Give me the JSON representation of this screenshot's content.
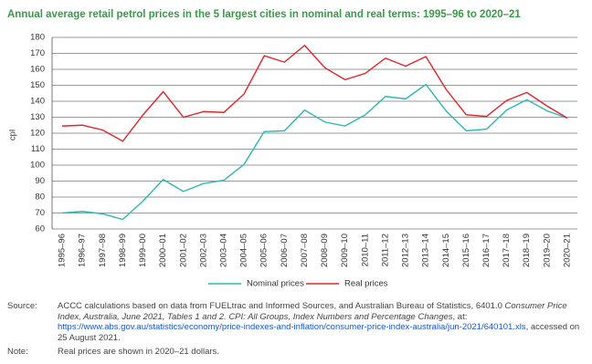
{
  "chart_data": {
    "type": "line",
    "title": "Annual average retail petrol prices in the 5 largest cities in nominal and real terms: 1995–96 to 2020–21",
    "y_label": "cpl",
    "categories": [
      "1995–96",
      "1996–97",
      "1997–98",
      "1998–99",
      "1999–00",
      "2000–01",
      "2001–02",
      "2002–03",
      "2003–04",
      "2004–05",
      "2005–06",
      "2006–07",
      "2007–08",
      "2008–09",
      "2009–10",
      "2010–11",
      "2011–12",
      "2012–13",
      "2013–14",
      "2014–15",
      "2015–16",
      "2016–17",
      "2017–18",
      "2018–19",
      "2019–20",
      "2020–21"
    ],
    "series": [
      {
        "name": "Nominal prices",
        "color": "#2bb8b2",
        "values": [
          70,
          71,
          69.5,
          66,
          77.5,
          91,
          83.5,
          88.5,
          90.5,
          100.5,
          121,
          121.5,
          134.5,
          127,
          124.5,
          131.5,
          143,
          141.5,
          150.5,
          134,
          121.5,
          122.5,
          134.5,
          141,
          134,
          129.5
        ]
      },
      {
        "name": "Real prices",
        "color": "#e2232a",
        "values": [
          124.5,
          125,
          122,
          115,
          131.5,
          146,
          130,
          133.5,
          133,
          144.5,
          168.5,
          164.5,
          175,
          161,
          153.5,
          157.5,
          167,
          162,
          168,
          147.5,
          131.5,
          130.5,
          140.5,
          145.5,
          137,
          129.5
        ]
      }
    ],
    "ylim": [
      60,
      180
    ],
    "yticks": [
      60,
      70,
      80,
      90,
      100,
      110,
      120,
      130,
      140,
      150,
      160,
      170,
      180
    ],
    "grid": true
  },
  "notes": {
    "source_label": "Source:",
    "source": [
      "ACCC calculations based on data from FUELtrac and Informed Sources, and Australian Bureau of Statistics, 6401.0 ",
      "Consumer Price Index, Australia, June 2021, Tables 1 and 2. CPI: All Groups, Index Numbers and Percentage Changes",
      ", at: ",
      "https://www.abs.gov.au/statistics/economy/price-indexes-and-inflation/consumer-price-index-australia/jun-2021/640101.xls",
      ", accessed on 25 August 2021."
    ],
    "note_label": "Note:",
    "note": "Real prices are shown in 2020–21 dollars."
  }
}
